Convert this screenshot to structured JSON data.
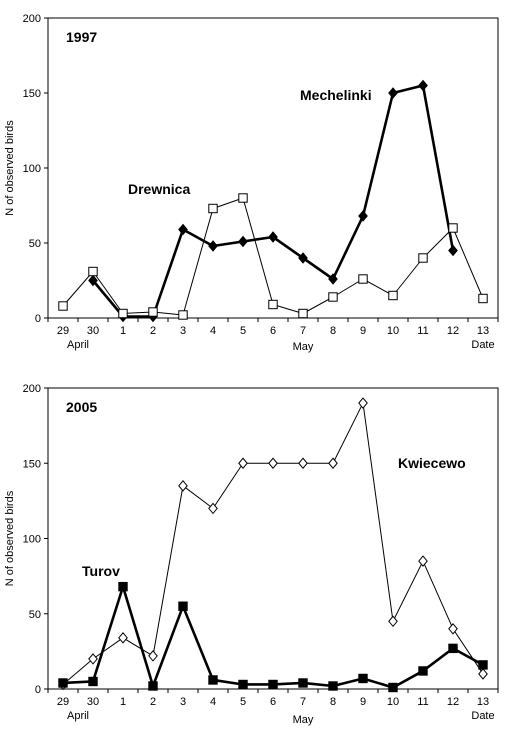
{
  "chart_data": [
    {
      "type": "line",
      "title": "1997",
      "ylabel": "N of observed birds",
      "xlabel": "Date",
      "ylim": [
        0,
        200
      ],
      "yticks": [
        "0",
        "50",
        "100",
        "150",
        "200"
      ],
      "categories": [
        "29",
        "30",
        "1",
        "2",
        "3",
        "4",
        "5",
        "6",
        "7",
        "8",
        "9",
        "10",
        "11",
        "12",
        "13"
      ],
      "month_labels": [
        "April",
        "May"
      ],
      "grid": false,
      "legend": "none",
      "series": [
        {
          "name": "Mechelinki",
          "marker": "filled-diamond",
          "line": "thick",
          "values": [
            null,
            25,
            1,
            1,
            59,
            48,
            51,
            54,
            40,
            26,
            68,
            150,
            155,
            45,
            null
          ]
        },
        {
          "name": "Drewnica",
          "marker": "open-square",
          "line": "thin",
          "values": [
            8,
            31,
            3,
            4,
            2,
            73,
            80,
            9,
            3,
            14,
            26,
            15,
            40,
            60,
            13
          ]
        }
      ]
    },
    {
      "type": "line",
      "title": "2005",
      "ylabel": "N of observed birds",
      "xlabel": "Date",
      "ylim": [
        0,
        200
      ],
      "yticks": [
        "0",
        "50",
        "100",
        "150",
        "200"
      ],
      "categories": [
        "29",
        "30",
        "1",
        "2",
        "3",
        "4",
        "5",
        "6",
        "7",
        "8",
        "9",
        "10",
        "11",
        "12",
        "13"
      ],
      "month_labels": [
        "April",
        "May"
      ],
      "grid": false,
      "legend": "none",
      "series": [
        {
          "name": "Kwiecewo",
          "marker": "open-diamond",
          "line": "thin",
          "values": [
            3,
            20,
            34,
            22,
            135,
            120,
            150,
            150,
            150,
            150,
            190,
            45,
            85,
            40,
            10
          ]
        },
        {
          "name": "Turov",
          "marker": "filled-square",
          "line": "thick",
          "values": [
            4,
            5,
            68,
            2,
            55,
            6,
            3,
            3,
            4,
            2,
            7,
            1,
            12,
            27,
            16
          ]
        }
      ]
    }
  ]
}
